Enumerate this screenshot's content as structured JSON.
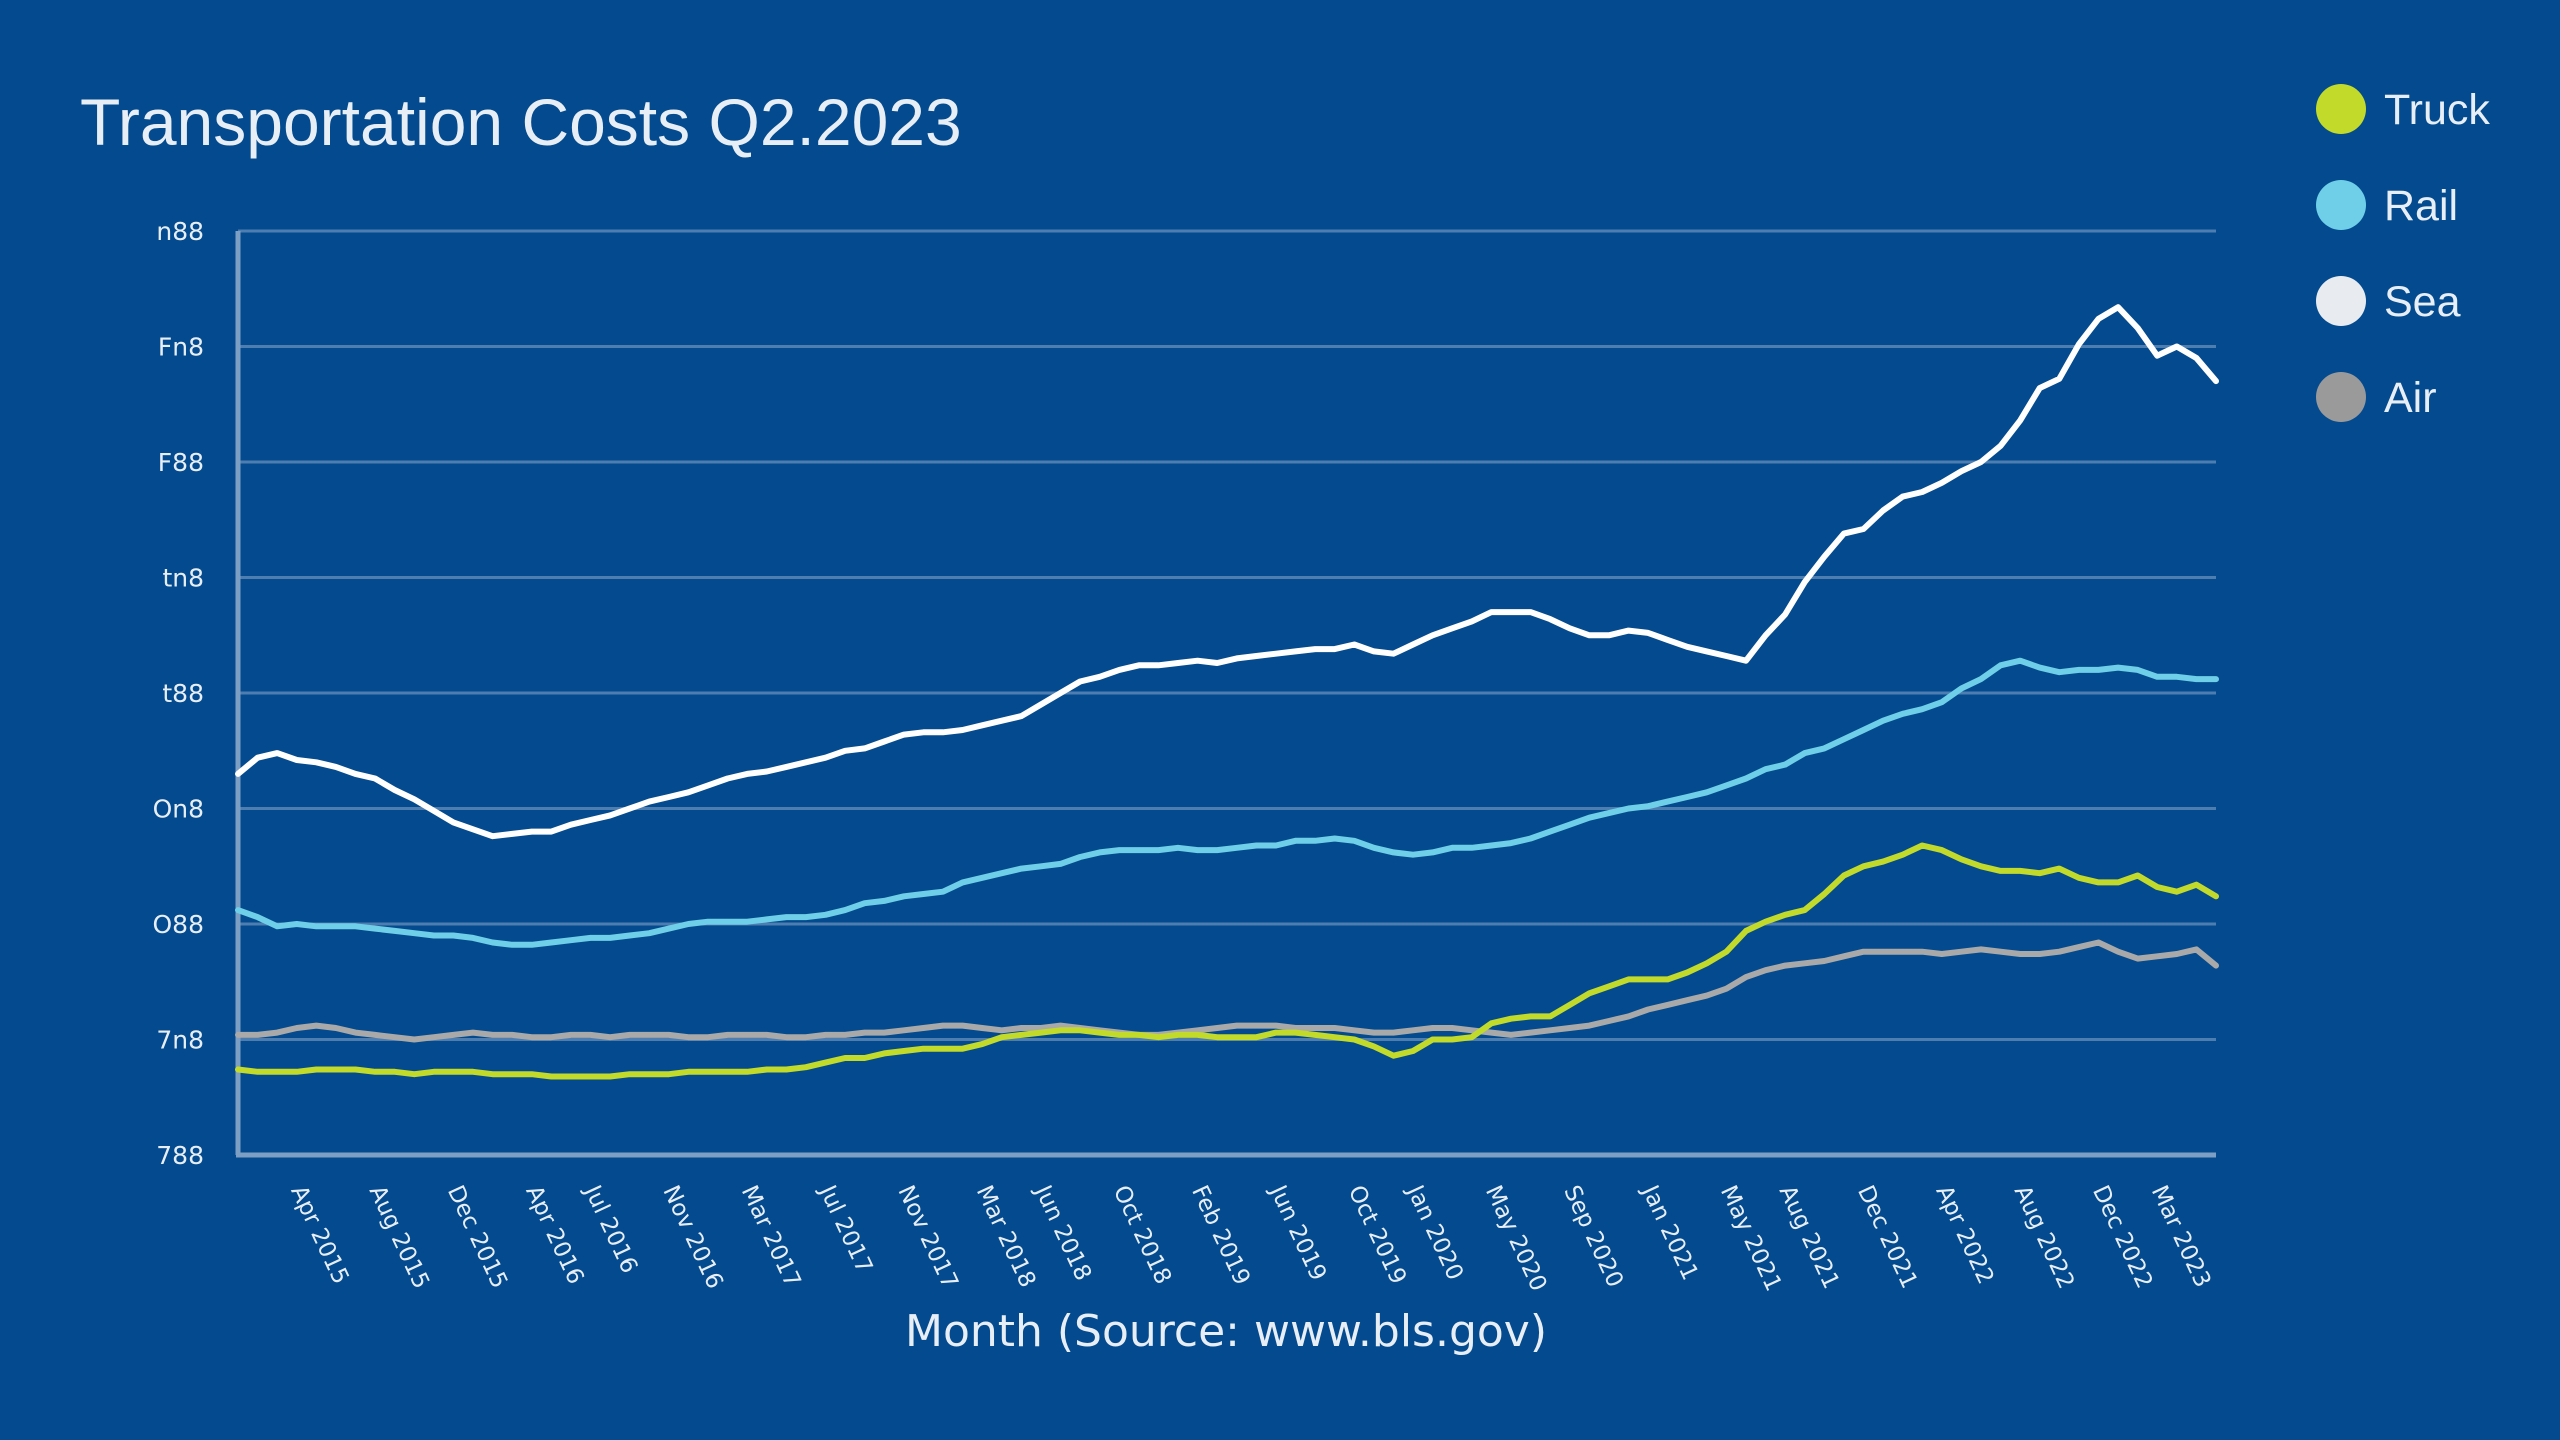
{
  "chart_data": {
    "type": "line",
    "title": "Transportation Costs Q2.2023",
    "xlabel": "Month (Source: www.bls.gov)",
    "ylabel": "",
    "y_tick_labels": [
      "788",
      "7n8",
      "O88",
      "On8",
      "t88",
      "tn8",
      "F88",
      "Fn8",
      "n88"
    ],
    "x_tick_labels": [
      "Apr 2015",
      "Aug 2015",
      "Dec 2015",
      "Apr 2016",
      "Jul 2016",
      "Nov 2016",
      "Mar 2017",
      "Jul 2017",
      "Nov 2017",
      "Mar 2018",
      "Jun 2018",
      "Oct 2018",
      "Feb 2019",
      "Jun 2019",
      "Oct 2019",
      "Jan 2020",
      "May 2020",
      "Sep 2020",
      "Jan 2021",
      "May 2021",
      "Aug 2021",
      "Dec 2021",
      "Apr 2022",
      "Aug 2022",
      "Dec 2022",
      "Mar 2023"
    ],
    "x_range": [
      "Jan 2015",
      "Jun 2023"
    ],
    "ylim": [
      0,
      400
    ],
    "grid": true,
    "legend_position": "top-right",
    "series": [
      {
        "name": "Truck",
        "color": "#c2da2a",
        "values": [
          37,
          36,
          36,
          36,
          37,
          37,
          37,
          36,
          36,
          35,
          36,
          36,
          36,
          35,
          35,
          35,
          34,
          34,
          34,
          34,
          35,
          35,
          35,
          36,
          36,
          36,
          36,
          37,
          37,
          38,
          40,
          42,
          42,
          44,
          45,
          46,
          46,
          46,
          48,
          51,
          52,
          53,
          54,
          54,
          53,
          52,
          52,
          51,
          52,
          52,
          51,
          51,
          51,
          53,
          53,
          52,
          51,
          50,
          47,
          43,
          45,
          50,
          50,
          51,
          57,
          59,
          60,
          60,
          65,
          70,
          73,
          76,
          76,
          76,
          79,
          83,
          88,
          97,
          101,
          104,
          106,
          113,
          121,
          125,
          127,
          130,
          134,
          132,
          128,
          125,
          123,
          123,
          122,
          124,
          120,
          118,
          118,
          121,
          116,
          114,
          117,
          112
        ]
      },
      {
        "name": "Rail",
        "color": "#6fcfe8",
        "values": [
          106,
          103,
          99,
          100,
          99,
          99,
          99,
          98,
          97,
          96,
          95,
          95,
          94,
          92,
          91,
          91,
          92,
          93,
          94,
          94,
          95,
          96,
          98,
          100,
          101,
          101,
          101,
          102,
          103,
          103,
          104,
          106,
          109,
          110,
          112,
          113,
          114,
          118,
          120,
          122,
          124,
          125,
          126,
          129,
          131,
          132,
          132,
          132,
          133,
          132,
          132,
          133,
          134,
          134,
          136,
          136,
          137,
          136,
          133,
          131,
          130,
          131,
          133,
          133,
          134,
          135,
          137,
          140,
          143,
          146,
          148,
          150,
          151,
          153,
          155,
          157,
          160,
          163,
          167,
          169,
          174,
          176,
          180,
          184,
          188,
          191,
          193,
          196,
          202,
          206,
          212,
          214,
          211,
          209,
          210,
          210,
          211,
          210,
          207,
          207,
          206,
          206
        ]
      },
      {
        "name": "Sea",
        "color": "#ffffff",
        "values": [
          165,
          172,
          174,
          171,
          170,
          168,
          165,
          163,
          158,
          154,
          149,
          144,
          141,
          138,
          139,
          140,
          140,
          143,
          145,
          147,
          150,
          153,
          155,
          157,
          160,
          163,
          165,
          166,
          168,
          170,
          172,
          175,
          176,
          179,
          182,
          183,
          183,
          184,
          186,
          188,
          190,
          195,
          200,
          205,
          207,
          210,
          212,
          212,
          213,
          214,
          213,
          215,
          216,
          217,
          218,
          219,
          219,
          221,
          218,
          217,
          221,
          225,
          228,
          231,
          235,
          235,
          235,
          232,
          228,
          225,
          225,
          227,
          226,
          223,
          220,
          218,
          216,
          214,
          225,
          234,
          248,
          259,
          269,
          271,
          279,
          285,
          287,
          291,
          296,
          300,
          307,
          318,
          332,
          336,
          351,
          362,
          367,
          358,
          346,
          350,
          345,
          335
        ]
      },
      {
        "name": "Air",
        "color": "#a9a9a9",
        "values": [
          52,
          52,
          53,
          55,
          56,
          55,
          53,
          52,
          51,
          50,
          51,
          52,
          53,
          52,
          52,
          51,
          51,
          52,
          52,
          51,
          52,
          52,
          52,
          51,
          51,
          52,
          52,
          52,
          51,
          51,
          52,
          52,
          53,
          53,
          54,
          55,
          56,
          56,
          55,
          54,
          55,
          55,
          56,
          55,
          54,
          53,
          52,
          52,
          53,
          54,
          55,
          56,
          56,
          56,
          55,
          55,
          55,
          54,
          53,
          53,
          54,
          55,
          55,
          54,
          53,
          52,
          53,
          54,
          55,
          56,
          58,
          60,
          63,
          65,
          67,
          69,
          72,
          77,
          80,
          82,
          83,
          84,
          86,
          88,
          88,
          88,
          88,
          87,
          88,
          89,
          88,
          87,
          87,
          88,
          90,
          92,
          88,
          85,
          86,
          87,
          89,
          82
        ]
      }
    ]
  }
}
